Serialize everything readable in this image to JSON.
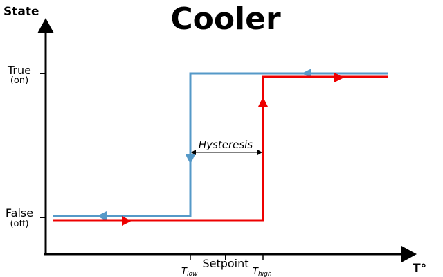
{
  "title": "Cooler",
  "y_axis_label": "State",
  "x_axis_label": "T°",
  "states": {
    "true_label": "True",
    "true_sub": "(on)",
    "false_label": "False",
    "false_sub": "(off)"
  },
  "hysteresis_label": "Hysteresis",
  "ticks": {
    "low_main": "T",
    "low_sub": "low",
    "setpoint": "Setpoint",
    "high_main": "T",
    "high_sub": "high"
  },
  "colors": {
    "cooling_curve": "#5599c8",
    "heating_curve": "#ee0000",
    "axis": "#000000"
  }
}
